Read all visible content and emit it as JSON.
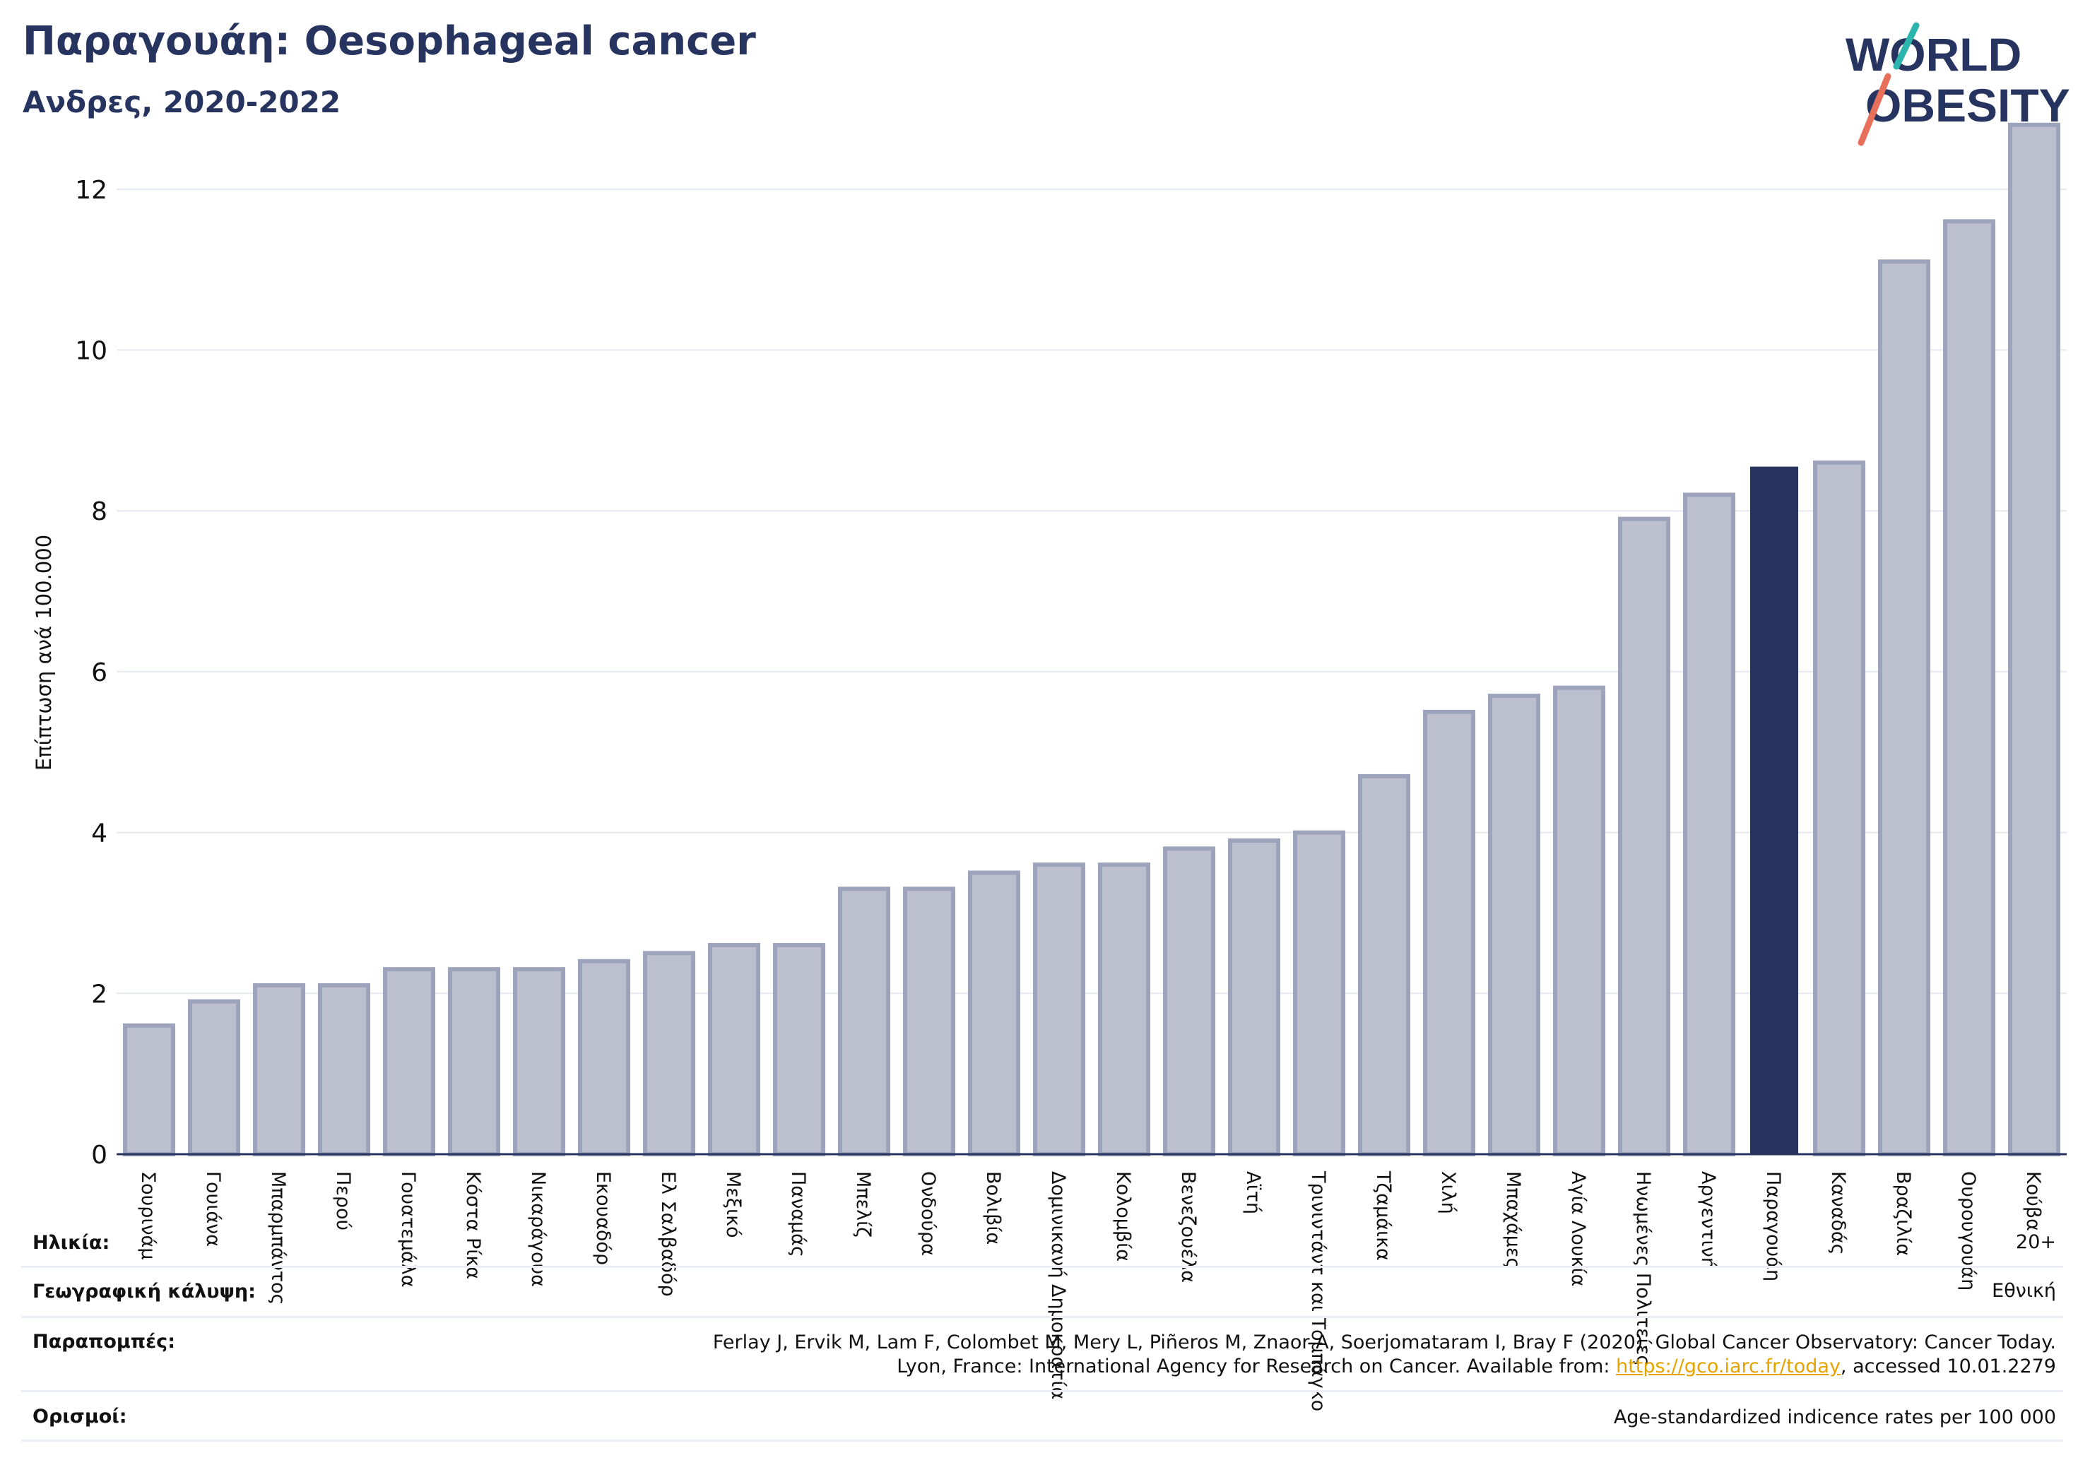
{
  "header": {
    "title": "Παραγουάη: Oesophageal cancer",
    "subtitle": "Ανδρες, 2020-2022"
  },
  "logo": {
    "line1": "WORLD",
    "line2": "OBESITY",
    "text_color": "#283460",
    "slash_teal": "#2bb5ad",
    "slash_coral": "#e8705a"
  },
  "colors": {
    "bar": "#bcc0ce",
    "bar_border": "#9da3bb",
    "highlight": "#283460",
    "grid": "#e6e8f0",
    "axis": "#283460"
  },
  "chart_data": {
    "type": "bar",
    "ylabel": "Επίπτωση ανά 100.000",
    "ylim": [
      0,
      13
    ],
    "yticks": [
      0,
      2,
      4,
      6,
      8,
      10,
      12
    ],
    "grid": true,
    "highlight": "Παραγουάη",
    "categories": [
      "Σουρινάμ",
      "Γουιάνα",
      "Μπαρμπάντος",
      "Περού",
      "Γουατεμάλα",
      "Κόστα Ρίκα",
      "Νικαράγουα",
      "Εκουαδόρ",
      "Ελ Σαλβαδόρ",
      "Μεξικό",
      "Παναμάς",
      "Μπελίζ",
      "Ονδούρα",
      "Βολιβία",
      "Δομινικανή Δημοκρατία",
      "Κολομβία",
      "Βενεζουέλα",
      "Αϊτή",
      "Τρινιντάντ και Τομπάγκο",
      "Τζαμάικα",
      "Χιλή",
      "Μπαχάμες",
      "Αγία Λουκία",
      "Ηνωμένες Πολιτείες",
      "Αργεντινή",
      "Παραγουάη",
      "Καναδάς",
      "Βραζιλία",
      "Ουρουγουάη",
      "Κούβα"
    ],
    "values": [
      1.6,
      1.9,
      2.1,
      2.1,
      2.3,
      2.3,
      2.3,
      2.4,
      2.5,
      2.6,
      2.6,
      3.3,
      3.3,
      3.5,
      3.6,
      3.6,
      3.8,
      3.9,
      4.0,
      4.7,
      5.5,
      5.7,
      5.8,
      7.9,
      8.2,
      8.55,
      8.6,
      11.1,
      11.6,
      12.8
    ]
  },
  "footer": {
    "age_label": "Ηλικία:",
    "age_value": "20+",
    "coverage_label": "Γεωγραφική κάλυψη:",
    "coverage_value": "Εθνική",
    "refs_label": "Παραπομπές:",
    "refs_line1": "Ferlay J, Ervik M, Lam F, Colombet M, Mery L, Piñeros M, Znaor A, Soerjomataram I, Bray F (2020). Global Cancer Observatory: Cancer Today.",
    "refs_line2_pre": "Lyon, France: International Agency for Research on Cancer. Available from: ",
    "refs_link": "https://gco.iarc.fr/today",
    "refs_line2_post": ", accessed 10.01.2279",
    "defs_label": "Ορισμοί:",
    "defs_value": "Age-standardized indicence rates per 100 000"
  }
}
